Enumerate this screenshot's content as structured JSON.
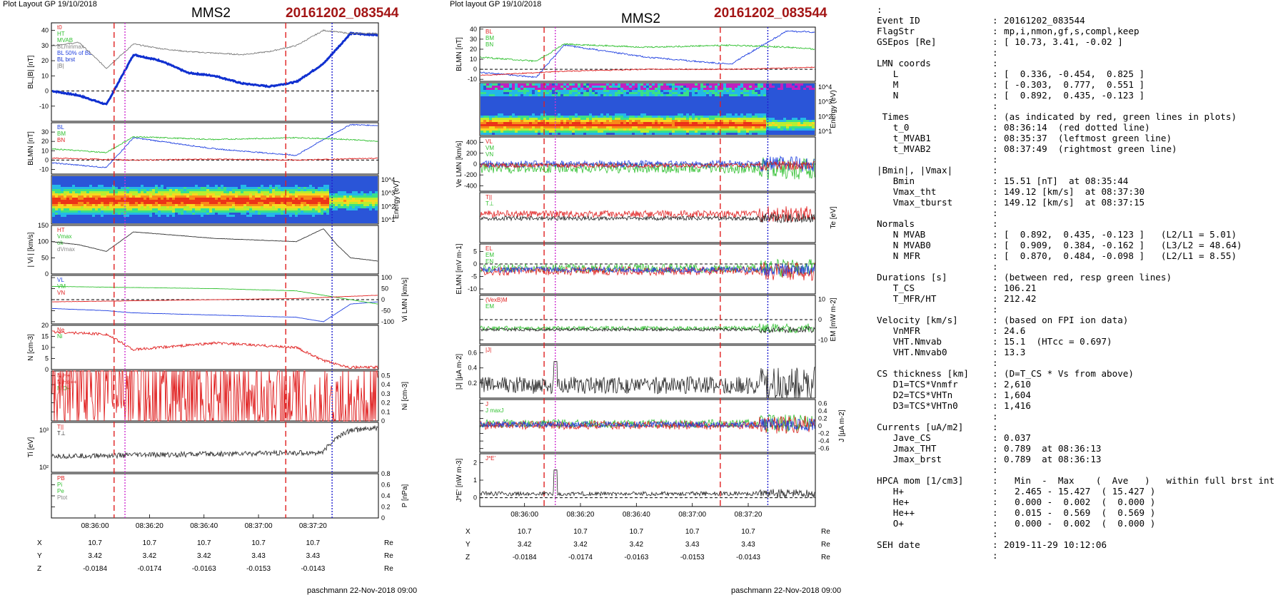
{
  "left_panel": {
    "header": "Plot Layout GP 19/10/2018",
    "spacecraft": "MMS2",
    "event": "20161202_083544",
    "footer": "paschmann 22-Nov-2018 09:00",
    "time_ticks": [
      "08:36:00",
      "08:36:20",
      "08:36:40",
      "08:37:00",
      "08:37:20"
    ],
    "coord_rows": [
      {
        "label": "X",
        "values": [
          "10.7",
          "10.7",
          "10.7",
          "10.7",
          "10.7"
        ],
        "unit": "Re"
      },
      {
        "label": "Y",
        "values": [
          "3.42",
          "3.42",
          "3.42",
          "3.43",
          "3.43"
        ],
        "unit": "Re"
      },
      {
        "label": "Z",
        "values": [
          "-0.0184",
          "-0.0174",
          "-0.0163",
          "-0.0153",
          "-0.0143"
        ],
        "unit": "Re"
      }
    ],
    "panel_ylabels": [
      "BL,|B| [nT]",
      "BLMN [nT]",
      "Energy (eV)",
      "| Vi | [km/s]",
      "Vi LMN [km/s]",
      "N [cm-3]",
      "Ni [cm-3]",
      "Ti [eV]",
      "P [nPa]"
    ]
  },
  "mid_panel": {
    "header": "Plot layout GP 19/10/2018",
    "spacecraft": "MMS2",
    "event": "20161202_083544",
    "footer": "paschmann 22-Nov-2018 09:00",
    "time_ticks": [
      "08:36:00",
      "08:36:20",
      "08:36:40",
      "08:37:00",
      "08:37:20"
    ],
    "coord_rows": [
      {
        "label": "X",
        "values": [
          "10.7",
          "10.7",
          "10.7",
          "10.7",
          "10.7"
        ],
        "unit": "Re"
      },
      {
        "label": "Y",
        "values": [
          "3.42",
          "3.42",
          "3.42",
          "3.43",
          "3.43"
        ],
        "unit": "Re"
      },
      {
        "label": "Z",
        "values": [
          "-0.0184",
          "-0.0174",
          "-0.0163",
          "-0.0153",
          "-0.0143"
        ],
        "unit": "Re"
      }
    ],
    "panel_ylabels": [
      "BLMN [nT]",
      "Energy (eV)",
      "Ve LMN [km/s]",
      "Te [eV]",
      "ELMN [mV m-1]",
      "EM [mW m-2]",
      "|J| [µA m-2]",
      "J [µA m-2]",
      "J*E' [nW m-3]"
    ]
  },
  "info": {
    "rows": [
      {
        "k": ":",
        "v": ""
      },
      {
        "k": "Event ID",
        "v": "20161202_083544"
      },
      {
        "k": "FlagStr",
        "v": "mp,i,nmon,gf,s,compl,keep"
      },
      {
        "k": "GSEpos [Re]",
        "v": "[ 10.73, 3.41, -0.02 ]"
      },
      {
        "k": "",
        "v": ""
      },
      {
        "k": "LMN coords",
        "v": ""
      },
      {
        "k": "   L",
        "v": "[  0.336, -0.454,  0.825 ]"
      },
      {
        "k": "   M",
        "v": "[ -0.303,  0.777,  0.551 ]"
      },
      {
        "k": "   N",
        "v": "[  0.892,  0.435, -0.123 ]"
      },
      {
        "k": "",
        "v": ""
      },
      {
        "k": " Times",
        "v": "(as indicated by red, green lines in plots)"
      },
      {
        "k": "   t_0",
        "v": "08:36:14  (red dotted line)"
      },
      {
        "k": "   t_MVAB1",
        "v": "08:35:37  (leftmost green line)"
      },
      {
        "k": "   t_MVAB2",
        "v": "08:37:49  (rightmost green line)"
      },
      {
        "k": "",
        "v": ""
      },
      {
        "k": "|Bmin|, |Vmax|",
        "v": ""
      },
      {
        "k": "   Bmin",
        "v": "15.51 [nT]  at 08:35:44"
      },
      {
        "k": "   Vmax_tht",
        "v": "149.12 [km/s]  at 08:37:30"
      },
      {
        "k": "   Vmax_tburst",
        "v": "149.12 [km/s]  at 08:37:15"
      },
      {
        "k": "",
        "v": ""
      },
      {
        "k": "Normals",
        "v": ""
      },
      {
        "k": "   N MVAB",
        "v": "[  0.892,  0.435, -0.123 ]   (L2/L1 = 5.01)"
      },
      {
        "k": "   N MVAB0",
        "v": "[  0.909,  0.384, -0.162 ]   (L3/L2 = 48.64)"
      },
      {
        "k": "   N MFR",
        "v": "[  0.870,  0.484, -0.098 ]   (L2/L1 = 8.55)"
      },
      {
        "k": "",
        "v": ""
      },
      {
        "k": "Durations [s]",
        "v": "(between red, resp green lines)"
      },
      {
        "k": "   T_CS",
        "v": "106.21"
      },
      {
        "k": "   T_MFR/HT",
        "v": "212.42"
      },
      {
        "k": "",
        "v": ""
      },
      {
        "k": "Velocity [km/s]",
        "v": "(based on FPI ion data)"
      },
      {
        "k": "   VnMFR",
        "v": "24.6"
      },
      {
        "k": "   VHT.Nmvab",
        "v": "15.1  (HTcc = 0.697)"
      },
      {
        "k": "   VHT.Nmvab0",
        "v": "13.3"
      },
      {
        "k": "",
        "v": ""
      },
      {
        "k": "CS thickness [km]",
        "v": "(D=T_CS * Vs from above)"
      },
      {
        "k": "   D1=TCS*Vnmfr",
        "v": "2,610"
      },
      {
        "k": "   D2=TCS*VHTn",
        "v": "1,604"
      },
      {
        "k": "   D3=TCS*VHTn0",
        "v": "1,416"
      },
      {
        "k": "",
        "v": ""
      },
      {
        "k": "Currents [uA/m2]",
        "v": ""
      },
      {
        "k": "   Jave_CS",
        "v": "0.037"
      },
      {
        "k": "   Jmax_THT",
        "v": "0.789  at 08:36:13"
      },
      {
        "k": "   Jmax_brst",
        "v": "0.789  at 08:36:13"
      },
      {
        "k": "",
        "v": ""
      },
      {
        "k": "HPCA mom [1/cm3]",
        "v": "  Min  -  Max    (  Ave   )   within full brst int"
      },
      {
        "k": "   H+",
        "v": "  2.465 - 15.427  ( 15.427 )"
      },
      {
        "k": "   He+",
        "v": "  0.000 -  0.002  (  0.000 )"
      },
      {
        "k": "   He++",
        "v": "  0.015 -  0.569  (  0.569 )"
      },
      {
        "k": "   O+",
        "v": "  0.000 -  0.002  (  0.000 )"
      },
      {
        "k": "",
        "v": ""
      },
      {
        "k": "SEH date",
        "v": "2019-11-29 10:12:06"
      },
      {
        "k": "",
        "v": ""
      }
    ]
  },
  "chart_data": [
    {
      "type": "line",
      "title": "MMS2 20161202_083544",
      "xlabel": "UT",
      "xlim": [
        "08:35:44",
        "08:37:44"
      ],
      "panels": [
        {
          "ylabel": "BL,|B| [nT]",
          "ylim": [
            -20,
            45
          ],
          "ticks": [
            -10,
            0,
            10,
            20,
            30,
            40
          ],
          "legend": [
            "t0",
            "HT",
            "MVAB",
            "BLminmax",
            "BL 50% of BL",
            "BL brst",
            "|B|"
          ],
          "series": [
            {
              "name": "BL brst",
              "color": "#1030d0",
              "t": [
                0,
                10,
                20,
                30,
                40,
                50,
                60,
                70,
                80,
                90,
                100,
                110,
                120
              ],
              "v": [
                0,
                -3,
                -9,
                24,
                20,
                12,
                10,
                5,
                3,
                6,
                18,
                38,
                37
              ]
            },
            {
              "name": "|B|",
              "color": "#777777",
              "t": [
                0,
                10,
                20,
                30,
                40,
                50,
                60,
                70,
                80,
                90,
                100,
                110,
                120
              ],
              "v": [
                30,
                32,
                15,
                31,
                28,
                26,
                25,
                24,
                26,
                30,
                40,
                38,
                38
              ]
            }
          ]
        },
        {
          "ylabel": "BLMN [nT]",
          "ylim": [
            -15,
            40
          ],
          "ticks": [
            -10,
            0,
            10,
            20,
            30
          ],
          "legend": [
            "BL",
            "BM",
            "BN"
          ],
          "series": [
            {
              "name": "BL",
              "color": "#2040e0",
              "t": [
                0,
                20,
                30,
                60,
                90,
                100,
                110,
                120
              ],
              "v": [
                -3,
                -8,
                24,
                12,
                5,
                22,
                38,
                37
              ]
            },
            {
              "name": "BM",
              "color": "#30c030",
              "t": [
                0,
                20,
                30,
                60,
                90,
                110,
                120
              ],
              "v": [
                12,
                8,
                25,
                22,
                24,
                22,
                20
              ]
            },
            {
              "name": "BN",
              "color": "#e02020",
              "t": [
                0,
                30,
                60,
                90,
                120
              ],
              "v": [
                2,
                0,
                1,
                0,
                2
              ]
            }
          ]
        },
        {
          "ylabel": "Energy (eV)",
          "type": "heatmap",
          "ticks": [
            "10^1",
            "10^2",
            "10^3",
            "10^4"
          ]
        },
        {
          "ylabel": "| Vi | [km/s]",
          "ylim": [
            0,
            150
          ],
          "ticks": [
            0,
            50,
            100,
            150
          ],
          "legend": [
            "HT",
            "Vmax",
            "ok",
            "dVmax"
          ],
          "series": [
            {
              "name": "|Vi|",
              "color": "#333333",
              "t": [
                0,
                10,
                20,
                30,
                60,
                90,
                100,
                105,
                110,
                120
              ],
              "v": [
                100,
                90,
                70,
                130,
                110,
                100,
                140,
                90,
                50,
                40
              ]
            }
          ]
        },
        {
          "ylabel": "Vi LMN [km/s]",
          "ylim": [
            -110,
            110
          ],
          "ticks": [
            -100,
            -50,
            0,
            50,
            100
          ],
          "legend": [
            "VL",
            "VM",
            "VN"
          ],
          "series": [
            {
              "name": "VL",
              "color": "#2040e0",
              "t": [
                0,
                20,
                30,
                60,
                90,
                100,
                110,
                120
              ],
              "v": [
                -40,
                -50,
                -60,
                -70,
                -80,
                -100,
                -20,
                -10
              ]
            },
            {
              "name": "VM",
              "color": "#30c030",
              "t": [
                0,
                30,
                60,
                90,
                120
              ],
              "v": [
                60,
                55,
                50,
                40,
                -20
              ]
            },
            {
              "name": "VN",
              "color": "#e02020",
              "t": [
                0,
                30,
                60,
                90,
                120
              ],
              "v": [
                -10,
                -5,
                0,
                5,
                20
              ]
            }
          ]
        },
        {
          "ylabel": "N [cm-3]",
          "ylim": [
            0,
            20
          ],
          "ticks": [
            0,
            5,
            10,
            15,
            20
          ],
          "legend": [
            "Ne",
            "Ni"
          ],
          "series": [
            {
              "name": "Ne",
              "color": "#e02020",
              "t": [
                0,
                20,
                30,
                60,
                90,
                100,
                110,
                120
              ],
              "v": [
                17,
                16,
                9,
                12,
                10,
                4,
                1,
                1
              ]
            }
          ]
        },
        {
          "ylabel": "Ni [cm-3]",
          "ylim": [
            0,
            0.55
          ],
          "ticks": [
            0,
            0.1,
            0.2,
            0.3,
            0.4,
            0.5
          ],
          "legend": [
            "N H+",
            "N He++",
            "N O+"
          ],
          "series": [
            {
              "name": "N He++",
              "color": "#e02020",
              "t": [
                10,
                30,
                45,
                60,
                75,
                90,
                100
              ],
              "v": [
                0.5,
                0.37,
                0.3,
                0.27,
                0.27,
                0.15,
                0.02
              ]
            }
          ]
        },
        {
          "ylabel": "Ti [eV]",
          "ylim": [
            "10^2",
            "10^3"
          ],
          "legend": [
            "T||",
            "T⊥"
          ],
          "series": [
            {
              "name": "T⊥",
              "color": "#333333",
              "t": [
                0,
                60,
                100,
                110,
                120
              ],
              "v": [
                200,
                230,
                250,
                900,
                1000
              ]
            }
          ]
        },
        {
          "ylabel": "P [nPa]",
          "ylim": [
            0,
            0.8
          ],
          "ticks": [
            0,
            0.2,
            0.4,
            0.6,
            0.8
          ],
          "legend": [
            "PB",
            "Pi",
            "Pe",
            "Ptot"
          ]
        }
      ],
      "markers": {
        "red_dashed_t": [
          23,
          86
        ],
        "magenta_dotted_t": 27,
        "blue_dotted_t": 103
      }
    },
    {
      "type": "line",
      "title": "MMS2 20161202_083544",
      "xlabel": "UT",
      "panels": [
        {
          "ylabel": "BLMN [nT]",
          "ylim": [
            -12,
            42
          ],
          "ticks": [
            -10,
            0,
            10,
            20,
            30,
            40
          ],
          "legend": [
            "BL",
            "BM",
            "BN"
          ]
        },
        {
          "ylabel": "Energy (eV)",
          "type": "heatmap",
          "ticks": [
            "10^1",
            "10^2",
            "10^3",
            "10^4"
          ]
        },
        {
          "ylabel": "Ve LMN [km/s]",
          "ylim": [
            -500,
            500
          ],
          "ticks": [
            -400,
            -200,
            0,
            200,
            400
          ],
          "legend": [
            "VL",
            "VM",
            "VN"
          ]
        },
        {
          "ylabel": "Te [eV]",
          "legend": [
            "T||",
            "T⊥"
          ]
        },
        {
          "ylabel": "ELMN [mV m-1]",
          "ylim": [
            -12,
            8
          ],
          "ticks": [
            -10,
            -5,
            0,
            5
          ],
          "legend": [
            "EL",
            "EM",
            "EN"
          ]
        },
        {
          "ylabel": "EM [mW m-2]",
          "ylim": [
            -12,
            12
          ],
          "ticks": [
            -10,
            0,
            10
          ],
          "legend": [
            "(VexB)M",
            "EM"
          ]
        },
        {
          "ylabel": "|J| [µA m-2]",
          "ylim": [
            0,
            0.7
          ],
          "ticks": [
            0.2,
            0.4,
            0.6
          ],
          "legend": [
            "|J|"
          ]
        },
        {
          "ylabel": "J [µA m-2]",
          "ylim": [
            -0.7,
            0.7
          ],
          "ticks": [
            -0.6,
            -0.4,
            -0.2,
            0,
            0.2,
            0.4,
            0.6
          ],
          "legend": [
            "J",
            "J maxJ"
          ]
        },
        {
          "ylabel": "J*E' [nW m-3]",
          "ylim": [
            -0.5,
            2.5
          ],
          "ticks": [
            0,
            1,
            2
          ],
          "legend": [
            "J*E'"
          ]
        }
      ]
    }
  ]
}
